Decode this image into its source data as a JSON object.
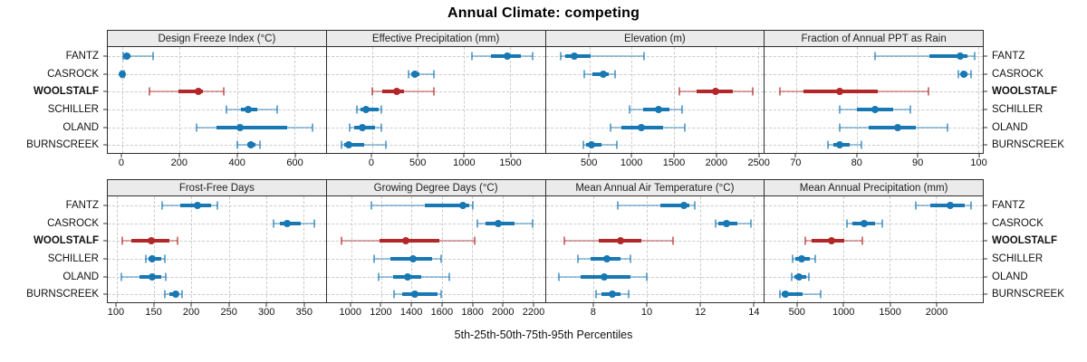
{
  "colors": {
    "series": "#1878b4",
    "highlight": "#b22828",
    "panel_header_bg": "#ebebeb",
    "grid": "#cbcbcb",
    "border": "#2e2e2e"
  },
  "chart_data": {
    "type": "scatter",
    "subtype": "percentile-dotplot",
    "title": "Annual Climate: competing",
    "xlabel": "5th-25th-50th-75th-95th Percentiles",
    "percentile_labels": [
      "p5",
      "p25",
      "p50",
      "p75",
      "p95"
    ],
    "categories": [
      "FANTZ",
      "CASROCK",
      "WOOLSTALF",
      "SCHILLER",
      "OLAND",
      "BURNSCREEK"
    ],
    "highlight_category": "WOOLSTALF",
    "grid": {
      "rows": 2,
      "cols": 4,
      "gridlines": "dashed",
      "row_labels": "both-sides"
    },
    "panels": [
      {
        "title": "Design Freeze Index (°C)",
        "xlim": [
          -50,
          710
        ],
        "ticks": [
          0,
          200,
          400,
          600
        ],
        "values": {
          "FANTZ": [
            3,
            8,
            15,
            30,
            107
          ],
          "CASROCK": [
            -2,
            0,
            2,
            4,
            6
          ],
          "WOOLSTALF": [
            95,
            195,
            265,
            280,
            355
          ],
          "SCHILLER": [
            365,
            415,
            440,
            470,
            540
          ],
          "OLAND": [
            260,
            330,
            410,
            575,
            665
          ],
          "BURNSCREEK": [
            400,
            435,
            450,
            465,
            480
          ]
        }
      },
      {
        "title": "Effective Precipitation (mm)",
        "xlim": [
          -490,
          1880
        ],
        "ticks": [
          0,
          500,
          1000,
          1500
        ],
        "values": {
          "FANTZ": [
            1090,
            1290,
            1475,
            1620,
            1745
          ],
          "CASROCK": [
            395,
            425,
            467,
            520,
            675
          ],
          "WOOLSTALF": [
            5,
            115,
            270,
            345,
            675
          ],
          "SCHILLER": [
            -160,
            -125,
            -65,
            70,
            100
          ],
          "OLAND": [
            -245,
            -195,
            -105,
            30,
            100
          ],
          "BURNSCREEK": [
            -330,
            -305,
            -250,
            -85,
            157
          ]
        }
      },
      {
        "title": "Elevation (m)",
        "xlim": [
          -20,
          2570
        ],
        "ticks": [
          500,
          1000,
          1500,
          2000,
          2500
        ],
        "values": {
          "FANTZ": [
            155,
            210,
            317,
            515,
            1150
          ],
          "CASROCK": [
            440,
            530,
            660,
            730,
            800
          ],
          "WOOLSTALF": [
            1565,
            1770,
            2000,
            2200,
            2435
          ],
          "SCHILLER": [
            975,
            1140,
            1315,
            1445,
            1600
          ],
          "OLAND": [
            745,
            875,
            1120,
            1375,
            1635
          ],
          "BURNSCREEK": [
            430,
            460,
            525,
            640,
            820
          ]
        }
      },
      {
        "title": "Fraction of Annual PPT as Rain",
        "xlim": [
          64.8,
          100.8
        ],
        "ticks": [
          70,
          80,
          90,
          100
        ],
        "values": {
          "FANTZ": [
            83,
            92,
            97,
            98.2,
            99.5
          ],
          "CASROCK": [
            96.7,
            97.2,
            97.7,
            98.2,
            98.8
          ],
          "WOOLSTALF": [
            67.3,
            71.2,
            77.1,
            83.5,
            91.8
          ],
          "SCHILLER": [
            77.2,
            80,
            83,
            86,
            88.9
          ],
          "OLAND": [
            77.1,
            82,
            86.8,
            89.8,
            94.9
          ],
          "BURNSCREEK": [
            75.2,
            76.2,
            77.1,
            78.8,
            80.8
          ]
        }
      },
      {
        "title": "Frost-Free Days",
        "xlim": [
          88,
          380
        ],
        "ticks": [
          100,
          150,
          200,
          250,
          300,
          350
        ],
        "values": {
          "FANTZ": [
            161,
            185,
            208,
            226,
            235
          ],
          "CASROCK": [
            310,
            318,
            328,
            346,
            364
          ],
          "WOOLSTALF": [
            108,
            119,
            146,
            170,
            181
          ],
          "SCHILLER": [
            139,
            143,
            147,
            159,
            164
          ],
          "OLAND": [
            106,
            130,
            148,
            160,
            166
          ],
          "BURNSCREEK": [
            165,
            170,
            179,
            183,
            187
          ]
        }
      },
      {
        "title": "Growing Degree Days (°C)",
        "xlim": [
          840,
          2280
        ],
        "ticks": [
          1000,
          1200,
          1400,
          1600,
          1800,
          2000,
          2200
        ],
        "values": {
          "FANTZ": [
            1135,
            1485,
            1740,
            1782,
            1802
          ],
          "CASROCK": [
            1837,
            1890,
            1970,
            2080,
            2198
          ],
          "WOOLSTALF": [
            937,
            1190,
            1360,
            1585,
            1818
          ],
          "SCHILLER": [
            1152,
            1260,
            1412,
            1535,
            1594
          ],
          "OLAND": [
            1180,
            1277,
            1376,
            1465,
            1647
          ],
          "BURNSCREEK": [
            1287,
            1336,
            1422,
            1574,
            1594
          ]
        }
      },
      {
        "title": "Mean Annual Air Temperature (°C)",
        "xlim": [
          6.2,
          14.4
        ],
        "ticks": [
          8,
          10,
          12,
          14
        ],
        "values": {
          "FANTZ": [
            8.9,
            10.5,
            11.4,
            11.6,
            11.8
          ],
          "CASROCK": [
            12.6,
            12.7,
            13.0,
            13.4,
            13.9
          ],
          "WOOLSTALF": [
            6.9,
            8.2,
            9.0,
            9.8,
            11.0
          ],
          "SCHILLER": [
            7.4,
            7.9,
            8.5,
            9.0,
            9.4
          ],
          "OLAND": [
            6.7,
            7.5,
            8.4,
            9.4,
            10.0
          ],
          "BURNSCREEK": [
            8.1,
            8.3,
            8.7,
            9.0,
            9.3
          ]
        }
      },
      {
        "title": "Mean Annual Precipitation (mm)",
        "xlim": [
          145,
          2505
        ],
        "ticks": [
          500,
          1000,
          1500,
          2000
        ],
        "values": {
          "FANTZ": [
            1780,
            1940,
            2150,
            2310,
            2380
          ],
          "CASROCK": [
            1030,
            1090,
            1218,
            1335,
            1416
          ],
          "WOOLSTALF": [
            580,
            655,
            865,
            1010,
            1205
          ],
          "SCHILLER": [
            450,
            475,
            540,
            635,
            695
          ],
          "OLAND": [
            440,
            465,
            513,
            590,
            620
          ],
          "BURNSCREEK": [
            312,
            330,
            370,
            555,
            750
          ]
        }
      }
    ]
  }
}
